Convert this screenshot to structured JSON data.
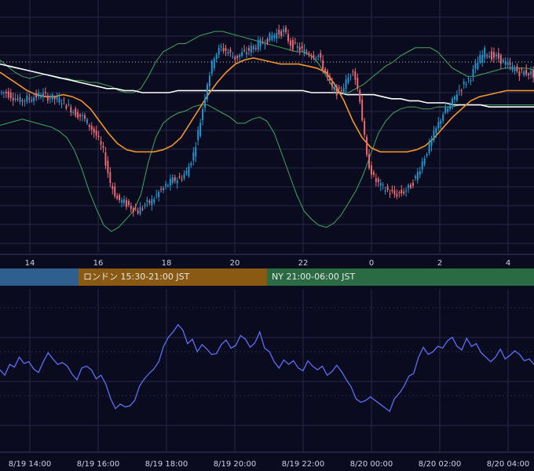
{
  "chart_data": [
    {
      "type": "candlestick",
      "title": "",
      "x_tick_labels": [
        "14",
        "16",
        "18",
        "20",
        "22",
        "0",
        "2",
        "4"
      ],
      "series": [
        {
          "name": "",
          "kind": "candles",
          "close": [
            0.7,
            0.68,
            0.66,
            0.67,
            0.68,
            0.69,
            0.68,
            0.67,
            0.66,
            0.63,
            0.6,
            0.58,
            0.54,
            0.49,
            0.41,
            0.26,
            0.18,
            0.16,
            0.14,
            0.12,
            0.15,
            0.17,
            0.21,
            0.24,
            0.27,
            0.28,
            0.31,
            0.4,
            0.56,
            0.75,
            0.88,
            0.92,
            0.9,
            0.87,
            0.89,
            0.91,
            0.93,
            0.95,
            0.97,
            0.99,
            1.0,
            0.94,
            0.92,
            0.9,
            0.89,
            0.88,
            0.8,
            0.72,
            0.7,
            0.75,
            0.82,
            0.67,
            0.38,
            0.28,
            0.24,
            0.22,
            0.2,
            0.21,
            0.23,
            0.28,
            0.36,
            0.44,
            0.52,
            0.6,
            0.63,
            0.7,
            0.74,
            0.78,
            0.85,
            0.9,
            0.88,
            0.87,
            0.84,
            0.82,
            0.8,
            0.8,
            0.79
          ]
        },
        {
          "name": "",
          "kind": "bollinger-upper",
          "values": [
            0.86,
            0.83,
            0.8,
            0.78,
            0.77,
            0.78,
            0.79,
            0.78,
            0.77,
            0.77,
            0.76,
            0.76,
            0.75,
            0.75,
            0.74,
            0.73,
            0.71,
            0.7,
            0.7,
            0.72,
            0.78,
            0.85,
            0.9,
            0.92,
            0.94,
            0.94,
            0.96,
            0.98,
            0.99,
            1.0,
            1.0,
            0.99,
            0.98,
            0.97,
            0.96,
            0.95,
            0.94,
            0.93,
            0.92,
            0.91,
            0.9,
            0.9,
            0.88,
            0.84,
            0.78,
            0.72,
            0.7,
            0.7,
            0.72,
            0.74,
            0.77,
            0.8,
            0.83,
            0.85,
            0.88,
            0.9,
            0.92,
            0.92,
            0.92,
            0.9,
            0.86,
            0.82,
            0.8,
            0.78,
            0.78,
            0.79,
            0.8,
            0.81,
            0.82,
            0.82,
            0.82,
            0.82,
            0.81
          ]
        },
        {
          "name": "",
          "kind": "bollinger-lower",
          "values": [
            0.54,
            0.55,
            0.56,
            0.57,
            0.56,
            0.55,
            0.54,
            0.53,
            0.51,
            0.48,
            0.42,
            0.33,
            0.22,
            0.13,
            0.05,
            0.02,
            0.04,
            0.08,
            0.12,
            0.2,
            0.36,
            0.48,
            0.55,
            0.58,
            0.6,
            0.61,
            0.63,
            0.64,
            0.64,
            0.62,
            0.6,
            0.58,
            0.55,
            0.55,
            0.57,
            0.58,
            0.56,
            0.5,
            0.4,
            0.3,
            0.2,
            0.12,
            0.08,
            0.05,
            0.04,
            0.06,
            0.1,
            0.16,
            0.22,
            0.3,
            0.4,
            0.5,
            0.56,
            0.6,
            0.62,
            0.63,
            0.63,
            0.62,
            0.62,
            0.63,
            0.63,
            0.63,
            0.64,
            0.64,
            0.64,
            0.64,
            0.64,
            0.64,
            0.64,
            0.64,
            0.64,
            0.64,
            0.64
          ]
        },
        {
          "name": "",
          "kind": "ma-long",
          "values": [
            0.84,
            0.83,
            0.82,
            0.81,
            0.8,
            0.79,
            0.78,
            0.77,
            0.76,
            0.75,
            0.74,
            0.73,
            0.72,
            0.72,
            0.71,
            0.71,
            0.7,
            0.7,
            0.7,
            0.7,
            0.71,
            0.71,
            0.71,
            0.71,
            0.71,
            0.71,
            0.71,
            0.71,
            0.71,
            0.71,
            0.71,
            0.71,
            0.71,
            0.71,
            0.71,
            0.7,
            0.7,
            0.7,
            0.7,
            0.69,
            0.69,
            0.69,
            0.69,
            0.68,
            0.67,
            0.67,
            0.66,
            0.66,
            0.65,
            0.65,
            0.65,
            0.64,
            0.64,
            0.64,
            0.64,
            0.63,
            0.63,
            0.63,
            0.63,
            0.63,
            0.63
          ]
        },
        {
          "name": "",
          "kind": "ma-short",
          "values": [
            0.8,
            0.77,
            0.74,
            0.71,
            0.69,
            0.68,
            0.68,
            0.69,
            0.68,
            0.66,
            0.62,
            0.56,
            0.5,
            0.45,
            0.42,
            0.41,
            0.41,
            0.41,
            0.42,
            0.44,
            0.48,
            0.55,
            0.62,
            0.69,
            0.75,
            0.8,
            0.84,
            0.86,
            0.87,
            0.86,
            0.85,
            0.84,
            0.84,
            0.84,
            0.83,
            0.82,
            0.8,
            0.74,
            0.66,
            0.56,
            0.48,
            0.43,
            0.41,
            0.41,
            0.41,
            0.41,
            0.42,
            0.44,
            0.48,
            0.53,
            0.58,
            0.62,
            0.66,
            0.68,
            0.69,
            0.7,
            0.71,
            0.71,
            0.71,
            0.71
          ]
        }
      ],
      "dotted_level": 0.85
    },
    {
      "type": "line",
      "title": "",
      "x_tick_labels": [
        "8/19 14:00",
        "8/19 16:00",
        "8/19 18:00",
        "8/19 20:00",
        "8/19 22:00",
        "8/20 00:00",
        "8/20 02:00",
        "8/20 04:00"
      ],
      "series": [
        {
          "name": "",
          "color": "#5b6ef5",
          "values": [
            0.46,
            0.4,
            0.52,
            0.49,
            0.6,
            0.53,
            0.55,
            0.47,
            0.43,
            0.55,
            0.65,
            0.58,
            0.52,
            0.54,
            0.5,
            0.41,
            0.35,
            0.48,
            0.5,
            0.46,
            0.36,
            0.4,
            0.3,
            0.14,
            0.03,
            0.08,
            0.05,
            0.06,
            0.12,
            0.28,
            0.36,
            0.42,
            0.47,
            0.55,
            0.72,
            0.82,
            0.88,
            0.96,
            0.9,
            0.75,
            0.8,
            0.66,
            0.74,
            0.69,
            0.63,
            0.64,
            0.74,
            0.79,
            0.7,
            0.73,
            0.84,
            0.8,
            0.71,
            0.76,
            0.88,
            0.7,
            0.66,
            0.55,
            0.48,
            0.57,
            0.52,
            0.56,
            0.48,
            0.45,
            0.56,
            0.5,
            0.46,
            0.5,
            0.4,
            0.44,
            0.51,
            0.44,
            0.35,
            0.27,
            0.14,
            0.1,
            0.12,
            0.16,
            0.12,
            0.08,
            0.04,
            0.0,
            0.14,
            0.2,
            0.28,
            0.39,
            0.42,
            0.6,
            0.71,
            0.63,
            0.66,
            0.72,
            0.7,
            0.78,
            0.82,
            0.72,
            0.68,
            0.81,
            0.72,
            0.75,
            0.65,
            0.6,
            0.55,
            0.6,
            0.69,
            0.58,
            0.62,
            0.67,
            0.63,
            0.56,
            0.58,
            0.52
          ]
        }
      ]
    }
  ],
  "sessions": [
    {
      "label": "",
      "color": "#2f5f8e"
    },
    {
      "label": "ロンドン 15:30-21:00 JST",
      "color": "#8a5a12"
    },
    {
      "label": "NY 21:00-06:00 JST",
      "color": "#2a6b43"
    }
  ],
  "colors": {
    "background": "#0b0b1f",
    "grid": "#26284a",
    "bull": "#1f9ad1",
    "bear": "#ef6b73",
    "bollinger": "#3fa85c",
    "ma_long": "#ffffff",
    "ma_short": "#f0962d",
    "indicator": "#5b6ef5"
  }
}
